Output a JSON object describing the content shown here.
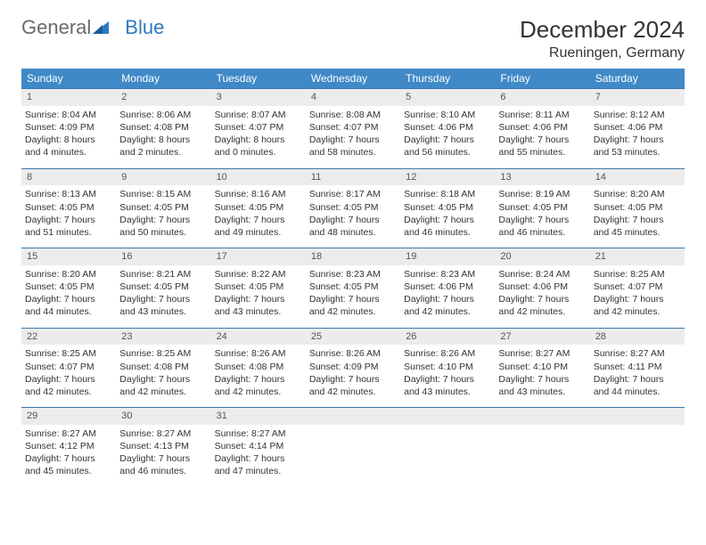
{
  "brand": {
    "part1": "General",
    "part2": "Blue"
  },
  "title": "December 2024",
  "location": "Rueningen, Germany",
  "colors": {
    "header_bg": "#4089c7",
    "header_text": "#ffffff",
    "daynum_bg": "#ececec",
    "row_border": "#3b78aa",
    "brand_gray": "#6b6b6b",
    "brand_blue": "#2f7abf"
  },
  "weekdays": [
    "Sunday",
    "Monday",
    "Tuesday",
    "Wednesday",
    "Thursday",
    "Friday",
    "Saturday"
  ],
  "days": [
    {
      "n": "1",
      "sunrise": "8:04 AM",
      "sunset": "4:09 PM",
      "dl1": "Daylight: 8 hours",
      "dl2": "and 4 minutes."
    },
    {
      "n": "2",
      "sunrise": "8:06 AM",
      "sunset": "4:08 PM",
      "dl1": "Daylight: 8 hours",
      "dl2": "and 2 minutes."
    },
    {
      "n": "3",
      "sunrise": "8:07 AM",
      "sunset": "4:07 PM",
      "dl1": "Daylight: 8 hours",
      "dl2": "and 0 minutes."
    },
    {
      "n": "4",
      "sunrise": "8:08 AM",
      "sunset": "4:07 PM",
      "dl1": "Daylight: 7 hours",
      "dl2": "and 58 minutes."
    },
    {
      "n": "5",
      "sunrise": "8:10 AM",
      "sunset": "4:06 PM",
      "dl1": "Daylight: 7 hours",
      "dl2": "and 56 minutes."
    },
    {
      "n": "6",
      "sunrise": "8:11 AM",
      "sunset": "4:06 PM",
      "dl1": "Daylight: 7 hours",
      "dl2": "and 55 minutes."
    },
    {
      "n": "7",
      "sunrise": "8:12 AM",
      "sunset": "4:06 PM",
      "dl1": "Daylight: 7 hours",
      "dl2": "and 53 minutes."
    },
    {
      "n": "8",
      "sunrise": "8:13 AM",
      "sunset": "4:05 PM",
      "dl1": "Daylight: 7 hours",
      "dl2": "and 51 minutes."
    },
    {
      "n": "9",
      "sunrise": "8:15 AM",
      "sunset": "4:05 PM",
      "dl1": "Daylight: 7 hours",
      "dl2": "and 50 minutes."
    },
    {
      "n": "10",
      "sunrise": "8:16 AM",
      "sunset": "4:05 PM",
      "dl1": "Daylight: 7 hours",
      "dl2": "and 49 minutes."
    },
    {
      "n": "11",
      "sunrise": "8:17 AM",
      "sunset": "4:05 PM",
      "dl1": "Daylight: 7 hours",
      "dl2": "and 48 minutes."
    },
    {
      "n": "12",
      "sunrise": "8:18 AM",
      "sunset": "4:05 PM",
      "dl1": "Daylight: 7 hours",
      "dl2": "and 46 minutes."
    },
    {
      "n": "13",
      "sunrise": "8:19 AM",
      "sunset": "4:05 PM",
      "dl1": "Daylight: 7 hours",
      "dl2": "and 46 minutes."
    },
    {
      "n": "14",
      "sunrise": "8:20 AM",
      "sunset": "4:05 PM",
      "dl1": "Daylight: 7 hours",
      "dl2": "and 45 minutes."
    },
    {
      "n": "15",
      "sunrise": "8:20 AM",
      "sunset": "4:05 PM",
      "dl1": "Daylight: 7 hours",
      "dl2": "and 44 minutes."
    },
    {
      "n": "16",
      "sunrise": "8:21 AM",
      "sunset": "4:05 PM",
      "dl1": "Daylight: 7 hours",
      "dl2": "and 43 minutes."
    },
    {
      "n": "17",
      "sunrise": "8:22 AM",
      "sunset": "4:05 PM",
      "dl1": "Daylight: 7 hours",
      "dl2": "and 43 minutes."
    },
    {
      "n": "18",
      "sunrise": "8:23 AM",
      "sunset": "4:05 PM",
      "dl1": "Daylight: 7 hours",
      "dl2": "and 42 minutes."
    },
    {
      "n": "19",
      "sunrise": "8:23 AM",
      "sunset": "4:06 PM",
      "dl1": "Daylight: 7 hours",
      "dl2": "and 42 minutes."
    },
    {
      "n": "20",
      "sunrise": "8:24 AM",
      "sunset": "4:06 PM",
      "dl1": "Daylight: 7 hours",
      "dl2": "and 42 minutes."
    },
    {
      "n": "21",
      "sunrise": "8:25 AM",
      "sunset": "4:07 PM",
      "dl1": "Daylight: 7 hours",
      "dl2": "and 42 minutes."
    },
    {
      "n": "22",
      "sunrise": "8:25 AM",
      "sunset": "4:07 PM",
      "dl1": "Daylight: 7 hours",
      "dl2": "and 42 minutes."
    },
    {
      "n": "23",
      "sunrise": "8:25 AM",
      "sunset": "4:08 PM",
      "dl1": "Daylight: 7 hours",
      "dl2": "and 42 minutes."
    },
    {
      "n": "24",
      "sunrise": "8:26 AM",
      "sunset": "4:08 PM",
      "dl1": "Daylight: 7 hours",
      "dl2": "and 42 minutes."
    },
    {
      "n": "25",
      "sunrise": "8:26 AM",
      "sunset": "4:09 PM",
      "dl1": "Daylight: 7 hours",
      "dl2": "and 42 minutes."
    },
    {
      "n": "26",
      "sunrise": "8:26 AM",
      "sunset": "4:10 PM",
      "dl1": "Daylight: 7 hours",
      "dl2": "and 43 minutes."
    },
    {
      "n": "27",
      "sunrise": "8:27 AM",
      "sunset": "4:10 PM",
      "dl1": "Daylight: 7 hours",
      "dl2": "and 43 minutes."
    },
    {
      "n": "28",
      "sunrise": "8:27 AM",
      "sunset": "4:11 PM",
      "dl1": "Daylight: 7 hours",
      "dl2": "and 44 minutes."
    },
    {
      "n": "29",
      "sunrise": "8:27 AM",
      "sunset": "4:12 PM",
      "dl1": "Daylight: 7 hours",
      "dl2": "and 45 minutes."
    },
    {
      "n": "30",
      "sunrise": "8:27 AM",
      "sunset": "4:13 PM",
      "dl1": "Daylight: 7 hours",
      "dl2": "and 46 minutes."
    },
    {
      "n": "31",
      "sunrise": "8:27 AM",
      "sunset": "4:14 PM",
      "dl1": "Daylight: 7 hours",
      "dl2": "and 47 minutes."
    }
  ],
  "labels": {
    "sunrise": "Sunrise: ",
    "sunset": "Sunset: "
  }
}
